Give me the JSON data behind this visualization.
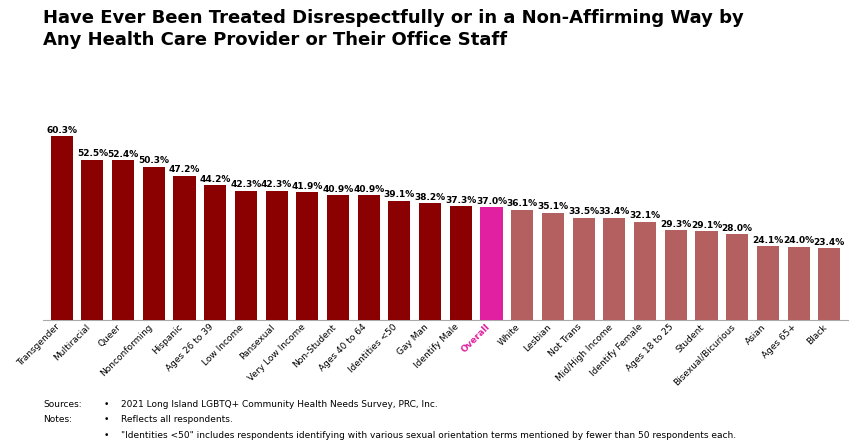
{
  "title": "Have Ever Been Treated Disrespectfully or in a Non-Affirming Way by\nAny Health Care Provider or Their Office Staff",
  "categories": [
    "Transgender",
    "Multiracial",
    "Queer",
    "Nonconforming",
    "Hispanic",
    "Ages 26 to 39",
    "Low Income",
    "Pansexual",
    "Very Low Income",
    "Non-Student",
    "Ages 40 to 64",
    "Identities <50",
    "Gay Man",
    "Identify Male",
    "Overall",
    "White",
    "Lesbian",
    "Not Trans",
    "Mid/High Income",
    "Identify Female",
    "Ages 18 to 25",
    "Student",
    "Bisexual/Bicurious",
    "Asian",
    "Ages 65+",
    "Black"
  ],
  "values": [
    60.3,
    52.5,
    52.4,
    50.3,
    47.2,
    44.2,
    42.3,
    42.3,
    41.9,
    40.9,
    40.9,
    39.1,
    38.2,
    37.3,
    37.0,
    36.1,
    35.1,
    33.5,
    33.4,
    32.1,
    29.3,
    29.1,
    28.0,
    24.1,
    24.0,
    23.4
  ],
  "bar_colors": [
    "#8B0000",
    "#8B0000",
    "#8B0000",
    "#8B0000",
    "#8B0000",
    "#8B0000",
    "#8B0000",
    "#8B0000",
    "#8B0000",
    "#8B0000",
    "#8B0000",
    "#8B0000",
    "#8B0000",
    "#8B0000",
    "#E020A0",
    "#B56060",
    "#B56060",
    "#B56060",
    "#B56060",
    "#B56060",
    "#B56060",
    "#B56060",
    "#B56060",
    "#B56060",
    "#B56060",
    "#B56060"
  ],
  "overall_index": 14,
  "overall_color": "#E020A0",
  "dark_red": "#8B0000",
  "light_red": "#B56060",
  "footnote_sources": "Sources:",
  "footnote_notes": "Notes:",
  "footnote1": "2021 Long Island LGBTQ+ Community Health Needs Survey, PRC, Inc.",
  "footnote2": "Reflects all respondents.",
  "footnote3": "\"Identities <50\" includes respondents identifying with various sexual orientation terms mentioned by fewer than 50 respondents each.",
  "title_fontsize": 13,
  "label_fontsize": 6.5,
  "tick_fontsize": 6.5,
  "footnote_fontsize": 6.5,
  "ylim": [
    0,
    70
  ]
}
